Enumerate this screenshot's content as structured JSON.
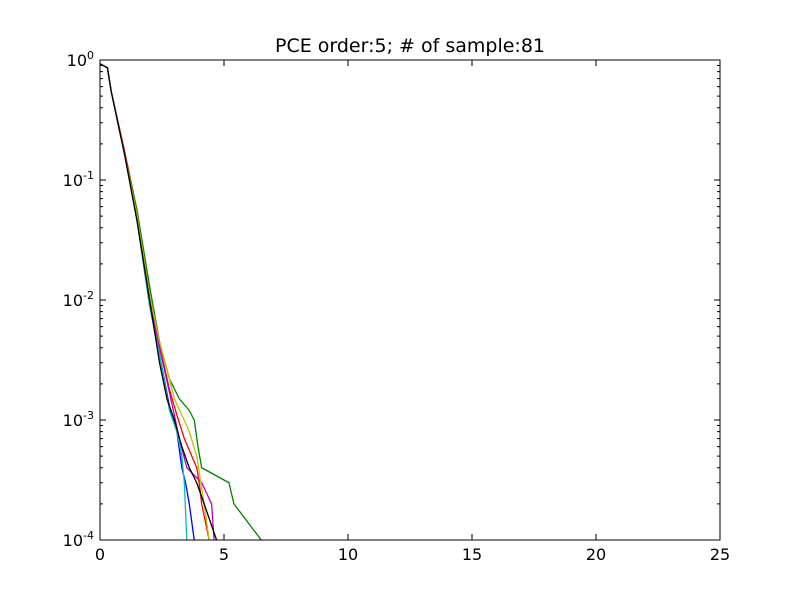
{
  "chart_data": {
    "type": "line",
    "title": "PCE order:5; # of sample:81",
    "xlabel": "",
    "ylabel": "",
    "xlim": [
      0,
      25
    ],
    "ylim": [
      0.0001,
      1
    ],
    "yscale": "log",
    "grid": false,
    "x_ticks": [
      0,
      5,
      10,
      15,
      20,
      25
    ],
    "x_tick_labels": [
      "0",
      "5",
      "10",
      "15",
      "20",
      "25"
    ],
    "y_ticks": [
      1,
      0.1,
      0.01,
      0.001,
      0.0001
    ],
    "y_tick_labels": [
      {
        "base": "10",
        "exp": "0"
      },
      {
        "base": "10",
        "exp": "-1"
      },
      {
        "base": "10",
        "exp": "-2"
      },
      {
        "base": "10",
        "exp": "-3"
      },
      {
        "base": "10",
        "exp": "-4"
      }
    ],
    "series": [
      {
        "color": "#008000",
        "x": [
          0,
          0.3,
          0.45,
          1.0,
          1.5,
          2.0,
          2.4,
          2.8,
          3.2,
          3.6,
          3.8,
          3.95,
          4.1,
          5.2,
          5.4,
          6.5
        ],
        "y": [
          0.93,
          0.86,
          0.55,
          0.17,
          0.055,
          0.013,
          0.0045,
          0.0022,
          0.0015,
          0.0012,
          0.001,
          0.0006,
          0.0004,
          0.0003,
          0.0002,
          0.0001
        ]
      },
      {
        "color": "#ff0000",
        "x": [
          0,
          0.3,
          0.45,
          1.0,
          1.5,
          2.0,
          2.4,
          2.8,
          3.1,
          3.4,
          3.7,
          3.9,
          4.0,
          4.1,
          4.4
        ],
        "y": [
          0.93,
          0.86,
          0.55,
          0.17,
          0.05,
          0.011,
          0.0042,
          0.0018,
          0.0011,
          0.0007,
          0.0005,
          0.0004,
          0.0003,
          0.0002,
          0.0001
        ]
      },
      {
        "color": "#0000ff",
        "x": [
          0,
          0.3,
          0.45,
          1.0,
          1.5,
          2.0,
          2.4,
          2.8,
          3.1,
          3.3,
          3.45,
          3.6,
          3.8
        ],
        "y": [
          0.93,
          0.86,
          0.55,
          0.16,
          0.045,
          0.009,
          0.0035,
          0.0013,
          0.0008,
          0.0004,
          0.0003,
          0.0002,
          0.0001
        ]
      },
      {
        "color": "#00bfbf",
        "x": [
          0,
          0.3,
          0.45,
          1.0,
          1.5,
          2.0,
          2.4,
          2.8,
          3.1,
          3.3,
          3.4,
          3.5
        ],
        "y": [
          0.93,
          0.86,
          0.55,
          0.16,
          0.045,
          0.009,
          0.0035,
          0.0012,
          0.0008,
          0.0005,
          0.0003,
          0.0001
        ]
      },
      {
        "color": "#bf00bf",
        "x": [
          0,
          0.3,
          0.45,
          1.0,
          1.5,
          2.0,
          2.4,
          2.8,
          3.2,
          3.5,
          4.1,
          4.5,
          4.6
        ],
        "y": [
          0.93,
          0.86,
          0.55,
          0.16,
          0.048,
          0.01,
          0.004,
          0.0017,
          0.0007,
          0.0004,
          0.0003,
          0.0002,
          0.0001
        ]
      },
      {
        "color": "#bfbf00",
        "x": [
          0,
          0.3,
          0.45,
          1.0,
          1.5,
          2.0,
          2.4,
          2.8,
          3.0,
          3.3,
          3.6,
          3.9,
          4.2,
          4.4
        ],
        "y": [
          0.93,
          0.86,
          0.55,
          0.16,
          0.05,
          0.011,
          0.0045,
          0.0022,
          0.0015,
          0.0011,
          0.0008,
          0.0005,
          0.0002,
          0.0001
        ]
      },
      {
        "color": "#000000",
        "x": [
          0,
          0.3,
          0.45,
          1.0,
          1.5,
          2.0,
          2.4,
          2.7,
          3.0,
          3.3,
          3.6,
          3.9,
          4.2,
          4.7
        ],
        "y": [
          0.93,
          0.86,
          0.55,
          0.16,
          0.045,
          0.01,
          0.003,
          0.0015,
          0.001,
          0.0006,
          0.0004,
          0.0003,
          0.0002,
          0.0001
        ]
      }
    ]
  }
}
